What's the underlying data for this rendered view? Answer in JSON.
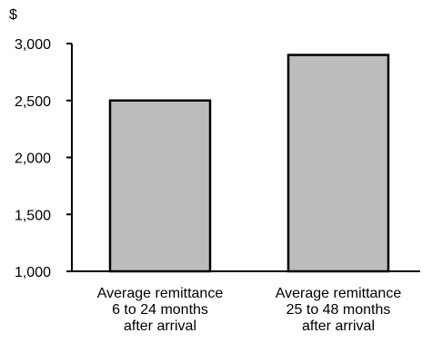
{
  "chart_data": {
    "type": "bar",
    "ylabel": "$",
    "ylim": [
      1000,
      3000
    ],
    "yticks": [
      1000,
      1500,
      2000,
      2500,
      3000
    ],
    "ytick_labels": [
      "1,000",
      "1,500",
      "2,000",
      "2,500",
      "3,000"
    ],
    "grid": false,
    "categories": [
      [
        "Average remittance",
        "6 to 24 months",
        "after arrival"
      ],
      [
        "Average remittance",
        "25 to 48 months",
        "after arrival"
      ]
    ],
    "values": [
      2500,
      2900
    ],
    "colors": {
      "bar_fill": "#bcbcbe",
      "bar_stroke": "#000000",
      "axis": "#000000"
    }
  }
}
